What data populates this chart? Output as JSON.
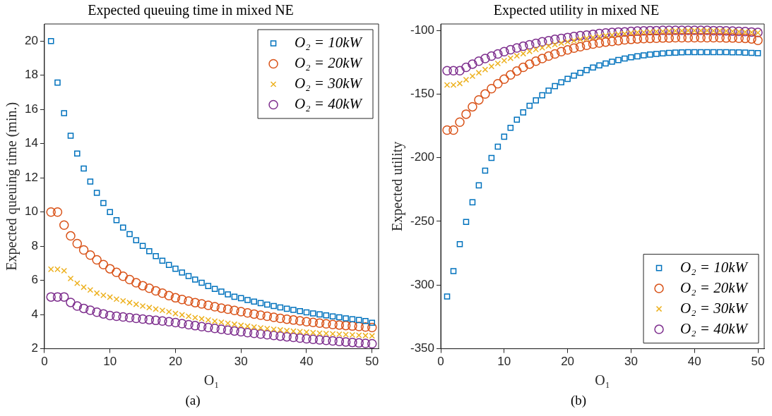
{
  "chart_data": [
    {
      "type": "scatter",
      "title": "Expected queuing time in mixed NE",
      "xlabel": "O₁",
      "ylabel": "Expected queuing time (min.)",
      "x": [
        1,
        2,
        3,
        4,
        5,
        6,
        7,
        8,
        9,
        10,
        11,
        12,
        13,
        14,
        15,
        16,
        17,
        18,
        19,
        20,
        21,
        22,
        23,
        24,
        25,
        26,
        27,
        28,
        29,
        30,
        31,
        32,
        33,
        34,
        35,
        36,
        37,
        38,
        39,
        40,
        41,
        42,
        43,
        44,
        45,
        46,
        47,
        48,
        49,
        50
      ],
      "xlim": [
        0,
        51
      ],
      "xticks": [
        0,
        10,
        20,
        30,
        40,
        50
      ],
      "ylim": [
        2,
        21
      ],
      "yticks": [
        2,
        4,
        6,
        8,
        10,
        12,
        14,
        16,
        18,
        20
      ],
      "grid": false,
      "legend": "top right",
      "annotations": [
        "(a)"
      ],
      "series": [
        {
          "name": "O₂ = 10kW",
          "color": "#0072bd",
          "marker": "square",
          "values": [
            20,
            17.57,
            15.78,
            14.46,
            13.42,
            12.54,
            11.78,
            11.12,
            10.52,
            10.0,
            9.52,
            9.09,
            8.71,
            8.35,
            8.02,
            7.71,
            7.42,
            7.15,
            6.9,
            6.68,
            6.46,
            6.25,
            6.05,
            5.86,
            5.67,
            5.5,
            5.34,
            5.18,
            5.04,
            4.96,
            4.85,
            4.76,
            4.67,
            4.58,
            4.5,
            4.42,
            4.34,
            4.27,
            4.2,
            4.13,
            4.07,
            4.01,
            3.95,
            3.89,
            3.84,
            3.78,
            3.73,
            3.68,
            3.62,
            3.52
          ]
        },
        {
          "name": "O₂ = 20kW",
          "color": "#d95319",
          "marker": "circle",
          "values": [
            10,
            10,
            9.23,
            8.6,
            8.15,
            7.78,
            7.48,
            7.2,
            6.92,
            6.68,
            6.47,
            6.24,
            6.05,
            5.86,
            5.69,
            5.54,
            5.39,
            5.25,
            5.11,
            4.98,
            4.88,
            4.79,
            4.7,
            4.62,
            4.54,
            4.46,
            4.38,
            4.31,
            4.24,
            4.17,
            4.1,
            4.03,
            3.96,
            3.9,
            3.84,
            3.78,
            3.73,
            3.68,
            3.63,
            3.58,
            3.54,
            3.5,
            3.46,
            3.42,
            3.39,
            3.36,
            3.33,
            3.3,
            3.27,
            3.24
          ]
        },
        {
          "name": "O₂ = 30kW",
          "color": "#edb120",
          "marker": "cross",
          "values": [
            6.65,
            6.65,
            6.56,
            6.11,
            5.83,
            5.6,
            5.44,
            5.25,
            5.13,
            5.02,
            4.9,
            4.8,
            4.7,
            4.6,
            4.5,
            4.41,
            4.32,
            4.24,
            4.16,
            4.06,
            3.98,
            3.9,
            3.82,
            3.75,
            3.68,
            3.61,
            3.55,
            3.49,
            3.43,
            3.37,
            3.32,
            3.27,
            3.22,
            3.18,
            3.14,
            3.1,
            3.06,
            3.03,
            3.0,
            2.97,
            2.94,
            2.91,
            2.89,
            2.87,
            2.85,
            2.83,
            2.81,
            2.79,
            2.77,
            2.75
          ]
        },
        {
          "name": "O₂ = 40kW",
          "color": "#7e2f8e",
          "marker": "circle",
          "values": [
            5.03,
            5.03,
            5.03,
            4.71,
            4.5,
            4.36,
            4.25,
            4.14,
            4.04,
            3.94,
            3.9,
            3.86,
            3.82,
            3.78,
            3.74,
            3.7,
            3.66,
            3.62,
            3.58,
            3.53,
            3.47,
            3.41,
            3.35,
            3.29,
            3.24,
            3.19,
            3.14,
            3.09,
            3.04,
            2.99,
            2.94,
            2.9,
            2.86,
            2.82,
            2.78,
            2.74,
            2.7,
            2.66,
            2.62,
            2.58,
            2.55,
            2.52,
            2.49,
            2.46,
            2.43,
            2.4,
            2.37,
            2.34,
            2.31,
            2.29
          ]
        }
      ]
    },
    {
      "type": "scatter",
      "title": "Expected utility in mixed NE",
      "xlabel": "O₁",
      "ylabel": "Expected utility",
      "x": [
        1,
        2,
        3,
        4,
        5,
        6,
        7,
        8,
        9,
        10,
        11,
        12,
        13,
        14,
        15,
        16,
        17,
        18,
        19,
        20,
        21,
        22,
        23,
        24,
        25,
        26,
        27,
        28,
        29,
        30,
        31,
        32,
        33,
        34,
        35,
        36,
        37,
        38,
        39,
        40,
        41,
        42,
        43,
        44,
        45,
        46,
        47,
        48,
        49,
        50
      ],
      "xlim": [
        0,
        51
      ],
      "xticks": [
        0,
        10,
        20,
        30,
        40,
        50
      ],
      "ylim": [
        -350,
        -95
      ],
      "yticks": [
        -350,
        -300,
        -250,
        -200,
        -150,
        -100
      ],
      "grid": false,
      "legend": "bottom right",
      "annotations": [
        "(b)"
      ],
      "series": [
        {
          "name": "O₂ = 10kW",
          "color": "#0072bd",
          "marker": "square",
          "values": [
            -309,
            -289,
            -267.9,
            -250.4,
            -235,
            -221.7,
            -210.2,
            -200.2,
            -191.3,
            -183.5,
            -176.5,
            -170.2,
            -164.4,
            -159.2,
            -155,
            -151,
            -147.3,
            -143.8,
            -140.8,
            -138.1,
            -135.6,
            -133.3,
            -131.2,
            -129.2,
            -127.5,
            -126,
            -124.6,
            -123.3,
            -122.1,
            -121.2,
            -120.4,
            -119.6,
            -119,
            -118.5,
            -118.1,
            -117.7,
            -117.5,
            -117.3,
            -117.1,
            -117.1,
            -117.1,
            -117.1,
            -117.1,
            -117.1,
            -117.1,
            -117.3,
            -117.3,
            -117.5,
            -117.7,
            -117.9
          ]
        },
        {
          "name": "O₂ = 20kW",
          "color": "#d95319",
          "marker": "circle",
          "values": [
            -178.3,
            -178.3,
            -172.1,
            -165.8,
            -160,
            -154.6,
            -150,
            -145.8,
            -141.9,
            -138.3,
            -135,
            -131.9,
            -129,
            -126.5,
            -124.2,
            -122.1,
            -120.2,
            -118.5,
            -116.7,
            -115.4,
            -114,
            -112.9,
            -111.7,
            -110.8,
            -110,
            -109.2,
            -108.7,
            -108.1,
            -107.5,
            -107.1,
            -106.7,
            -106.5,
            -106.3,
            -106.2,
            -106,
            -106,
            -105.8,
            -105.8,
            -105.8,
            -105.8,
            -105.8,
            -105.8,
            -105.8,
            -105.8,
            -106,
            -106,
            -106.2,
            -106.3,
            -106.7,
            -107.9
          ]
        },
        {
          "name": "O₂ = 30kW",
          "color": "#edb120",
          "marker": "cross",
          "values": [
            -142.9,
            -142.9,
            -141.7,
            -138.8,
            -136,
            -133.3,
            -130.8,
            -128.3,
            -126,
            -123.8,
            -121.9,
            -120,
            -118.3,
            -116.5,
            -115,
            -113.7,
            -112.3,
            -111.2,
            -110,
            -109,
            -108.1,
            -107.1,
            -106.3,
            -105.6,
            -104.8,
            -104.2,
            -103.7,
            -103.1,
            -102.7,
            -102.1,
            -101.7,
            -101.5,
            -101.2,
            -101,
            -100.8,
            -100.6,
            -100.4,
            -100.4,
            -100.2,
            -100.2,
            -100.2,
            -100.2,
            -100.4,
            -100.4,
            -100.6,
            -100.8,
            -101,
            -101.2,
            -101.5,
            -101.9
          ]
        },
        {
          "name": "O₂ = 40kW",
          "color": "#7e2f8e",
          "marker": "circle",
          "values": [
            -131.7,
            -131.7,
            -131.7,
            -129,
            -126.5,
            -124.2,
            -122.1,
            -120.2,
            -118.5,
            -116.7,
            -115.2,
            -113.8,
            -112.5,
            -111.3,
            -110.2,
            -109,
            -108.1,
            -107.1,
            -106.3,
            -105.6,
            -104.8,
            -104.2,
            -103.7,
            -103.1,
            -102.5,
            -102.1,
            -101.7,
            -101.3,
            -101.2,
            -100.8,
            -100.6,
            -100.4,
            -100.2,
            -100.2,
            -100,
            -100,
            -100,
            -100,
            -100,
            -100,
            -100,
            -100,
            -100.2,
            -100.2,
            -100.4,
            -100.6,
            -100.8,
            -101,
            -101.3,
            -101.7
          ]
        }
      ]
    }
  ]
}
